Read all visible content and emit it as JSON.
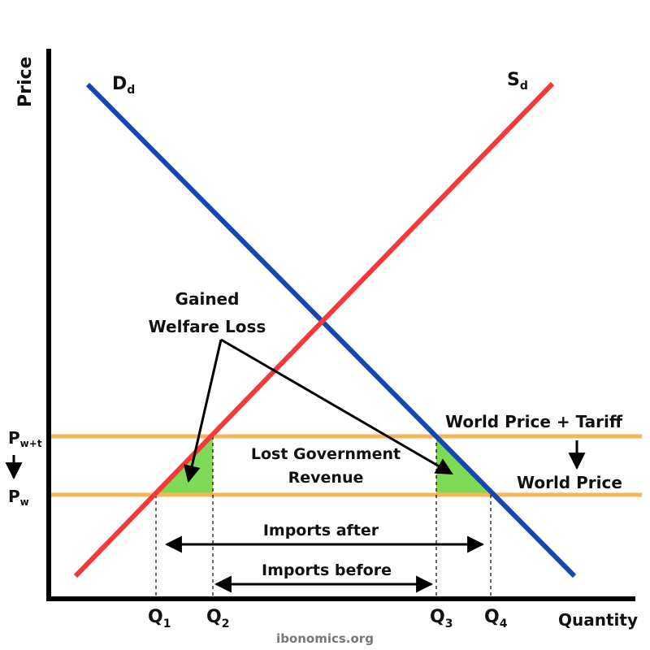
{
  "axes": {
    "y_label": "Price",
    "x_label": "Quantity"
  },
  "curves": {
    "demand": {
      "main": "D",
      "sub": "d",
      "color": "#1447b0"
    },
    "supply": {
      "main": "S",
      "sub": "d",
      "color": "#f23a3a"
    }
  },
  "price_lines": {
    "color": "#f7b55a",
    "tariff": {
      "text": "World Price + Tariff",
      "axis_main": "P",
      "axis_sub": "w+t"
    },
    "world": {
      "text": "World Price",
      "axis_main": "P",
      "axis_sub": "w"
    }
  },
  "quantities": [
    {
      "main": "Q",
      "sub": "1"
    },
    {
      "main": "Q",
      "sub": "2"
    },
    {
      "main": "Q",
      "sub": "3"
    },
    {
      "main": "Q",
      "sub": "4"
    }
  ],
  "annotations": {
    "welfare_loss_line1": "Gained",
    "welfare_loss_line2": "Welfare Loss",
    "gov_revenue_line1": "Lost Government",
    "gov_revenue_line2": "Revenue",
    "imports_after": "Imports after",
    "imports_before": "Imports before"
  },
  "colors": {
    "welfare_fill": "#7ed957",
    "axis": "#000000"
  },
  "credit": "ibonomics.org"
}
